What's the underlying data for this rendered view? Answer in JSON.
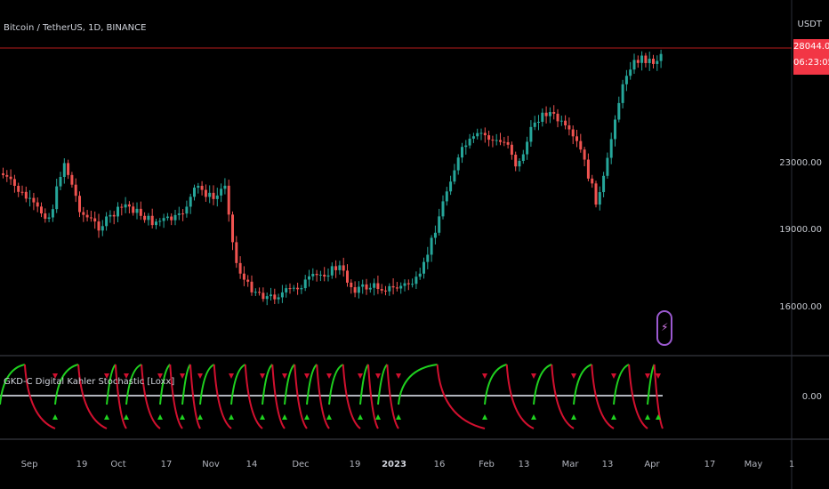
{
  "symbol": {
    "title": "Bitcoin / TetherUS, 1D, BINANCE"
  },
  "indicator": {
    "title": "GKD-C Digital Kahler Stochastic [Loxx]",
    "zero_label": "0.00"
  },
  "price_axis": {
    "currency": "USDT",
    "labels": [
      "23000.00",
      "19000.00",
      "16000.00"
    ],
    "current_price": "28044.00",
    "countdown": "06:23:05"
  },
  "time_axis": {
    "labels": [
      "Sep",
      "19",
      "Oct",
      "17",
      "Nov",
      "14",
      "Dec",
      "19",
      "2023",
      "16",
      "Feb",
      "13",
      "Mar",
      "13",
      "Apr",
      "17",
      "May",
      "1"
    ],
    "bold": [
      "2023"
    ]
  },
  "colors": {
    "up": "#26a69a",
    "down": "#ef5350",
    "osc_up": "#1fd11f",
    "osc_down": "#d1102f",
    "price_line": "#b71c1c",
    "badge": "#f23645",
    "background": "#000000"
  },
  "icons": {
    "flash": "lightning-bolt-icon"
  },
  "chart_data": {
    "type": "candlestick",
    "price_levels": [
      23000,
      19000,
      16000
    ],
    "current_price": 28044
  }
}
